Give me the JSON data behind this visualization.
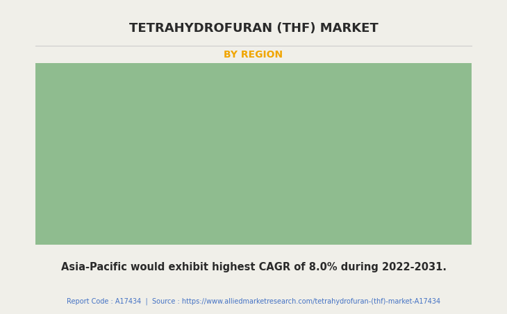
{
  "title": "TETRAHYDROFURAN (THF) MARKET",
  "subtitle": "BY REGION",
  "subtitle_color": "#F0A500",
  "body_text": "Asia-Pacific would exhibit highest CAGR of 8.0% during 2022-2031.",
  "footer_text": "Report Code : A17434  |  Source : https://www.alliedmarketresearch.com/tetrahydrofuran-(thf)-market-A17434",
  "footer_color": "#4472C4",
  "background_color": "#F0EFE9",
  "title_color": "#2a2a2a",
  "body_text_color": "#2a2a2a",
  "map_land_color": "#8FBC8F",
  "map_us_color": "#d8d8d8",
  "map_shadow_color": "#999999",
  "map_edge_color": "#b0ccb0",
  "title_fontsize": 13,
  "subtitle_fontsize": 10,
  "body_fontsize": 10.5,
  "footer_fontsize": 7,
  "line_color": "#cccccc"
}
